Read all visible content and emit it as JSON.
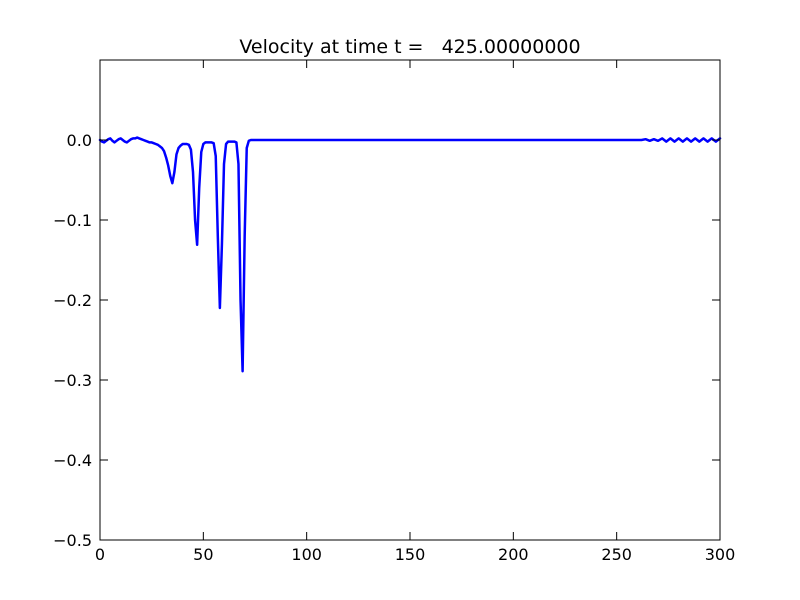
{
  "chart_data": {
    "type": "line",
    "title": "Velocity at time t =   425.00000000",
    "xlabel": "",
    "ylabel": "",
    "xlim": [
      0,
      300
    ],
    "ylim": [
      -0.5,
      0.1
    ],
    "x_ticks": [
      0,
      50,
      100,
      150,
      200,
      250,
      300
    ],
    "x_tick_labels": [
      "0",
      "50",
      "100",
      "150",
      "200",
      "250",
      "300"
    ],
    "y_ticks": [
      0.0,
      -0.1,
      -0.2,
      -0.3,
      -0.4,
      -0.5
    ],
    "y_tick_labels": [
      "0.0",
      "−0.1",
      "−0.2",
      "−0.3",
      "−0.4",
      "−0.5"
    ],
    "grid": false,
    "legend": "none",
    "series": [
      {
        "color": "#0000ff",
        "x": [
          0,
          1,
          2,
          3,
          4,
          5,
          6,
          7,
          8,
          9,
          10,
          11,
          12,
          13,
          14,
          15,
          16,
          17,
          18,
          19,
          20,
          21,
          22,
          23,
          24,
          25,
          26,
          27,
          28,
          29,
          30,
          31,
          32,
          33,
          34,
          35,
          36,
          37,
          38,
          39,
          40,
          41,
          42,
          43,
          44,
          45,
          46,
          47,
          48,
          49,
          50,
          51,
          52,
          53,
          54,
          55,
          56,
          57,
          58,
          59,
          60,
          61,
          62,
          63,
          64,
          65,
          66,
          67,
          68,
          69,
          70,
          71,
          72,
          73,
          74,
          75,
          80,
          100,
          150,
          200,
          250,
          262,
          264,
          266,
          268,
          270,
          272,
          274,
          276,
          278,
          280,
          282,
          284,
          286,
          288,
          290,
          292,
          294,
          296,
          298,
          300
        ],
        "y": [
          0.0,
          -0.002,
          -0.003,
          -0.001,
          0.001,
          0.002,
          -0.001,
          -0.003,
          -0.001,
          0.001,
          0.002,
          0.0,
          -0.002,
          -0.003,
          -0.001,
          0.001,
          0.002,
          0.002,
          0.003,
          0.002,
          0.001,
          0.0,
          -0.001,
          -0.002,
          -0.003,
          -0.003,
          -0.004,
          -0.005,
          -0.006,
          -0.008,
          -0.01,
          -0.014,
          -0.022,
          -0.032,
          -0.045,
          -0.054,
          -0.04,
          -0.018,
          -0.01,
          -0.007,
          -0.005,
          -0.005,
          -0.005,
          -0.006,
          -0.012,
          -0.04,
          -0.1,
          -0.131,
          -0.06,
          -0.015,
          -0.005,
          -0.003,
          -0.003,
          -0.003,
          -0.003,
          -0.004,
          -0.02,
          -0.12,
          -0.21,
          -0.13,
          -0.03,
          -0.005,
          -0.002,
          -0.002,
          -0.002,
          -0.002,
          -0.003,
          -0.03,
          -0.2,
          -0.289,
          -0.12,
          -0.01,
          -0.001,
          0.0,
          0.0,
          0.0,
          0.0,
          0.0,
          0.0,
          0.0,
          0.0,
          0.0,
          0.001,
          -0.001,
          0.001,
          -0.001,
          0.002,
          -0.002,
          0.002,
          -0.002,
          0.002,
          -0.002,
          0.002,
          -0.002,
          0.002,
          -0.002,
          0.002,
          -0.002,
          0.002,
          -0.002,
          0.002
        ]
      }
    ]
  }
}
